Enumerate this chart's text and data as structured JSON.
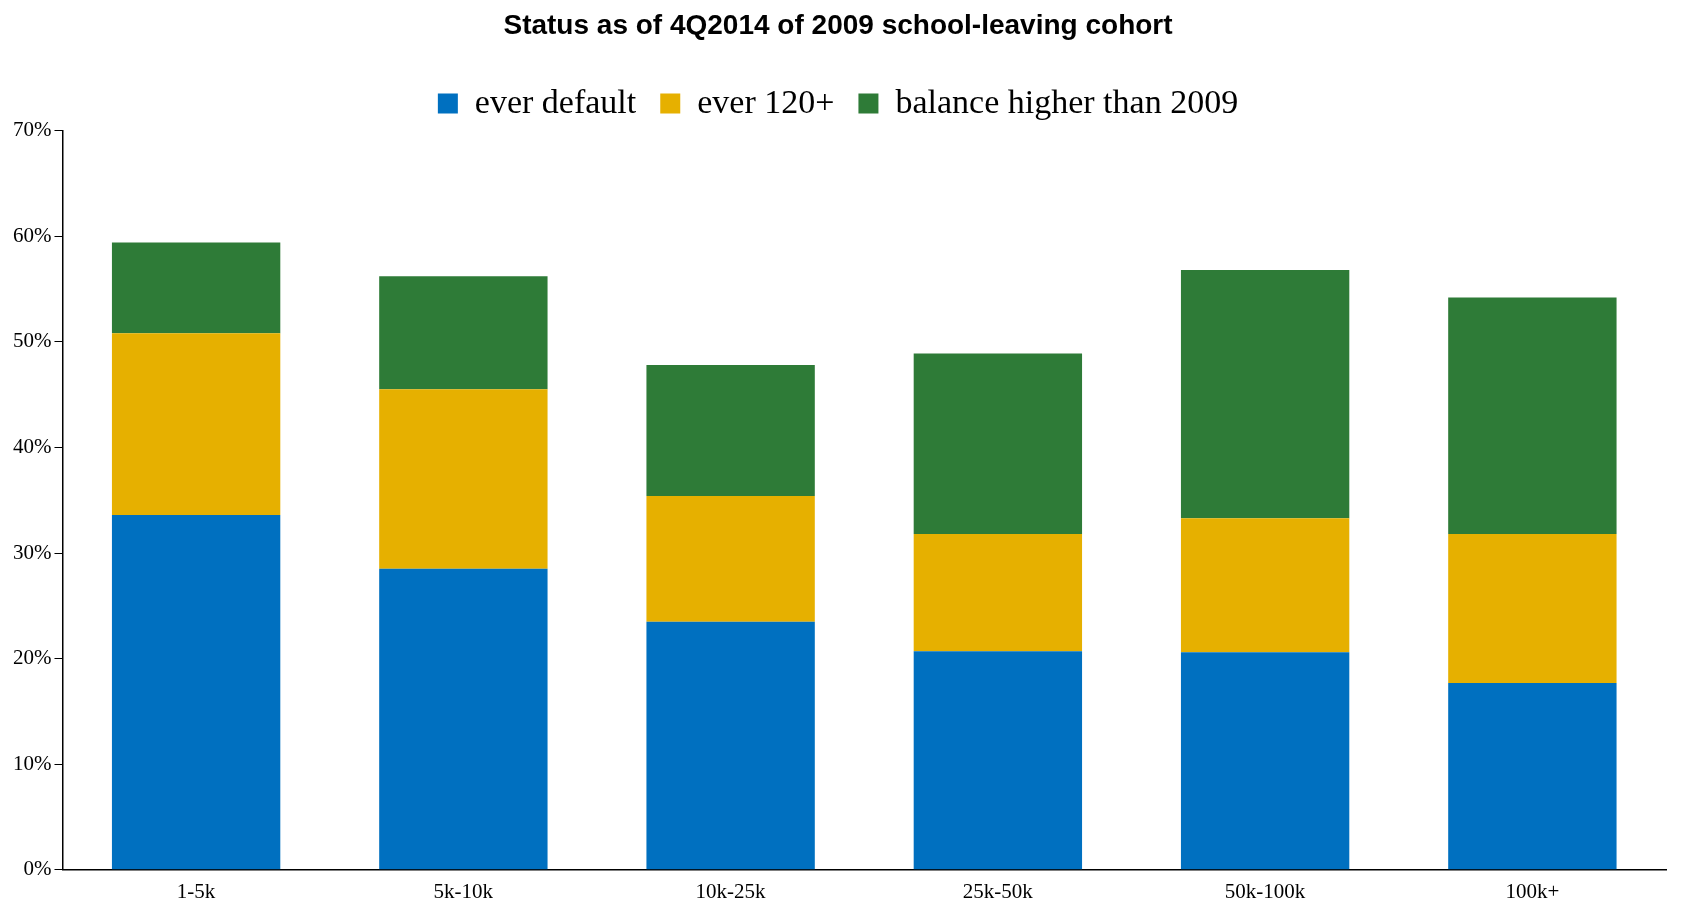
{
  "chart_data": {
    "type": "bar",
    "title": "Status as of 4Q2014 of 2009 school-leaving cohort",
    "stacked": true,
    "categories": [
      "1-5k",
      "5k-10k",
      "10k-25k",
      "25k-50k",
      "50k-100k",
      "100k+"
    ],
    "series": [
      {
        "name": "ever default",
        "color": "#0070c0",
        "values": [
          33.6,
          28.5,
          23.5,
          20.7,
          20.6,
          17.7
        ]
      },
      {
        "name": "ever 120+",
        "color": "#e6b000",
        "values": [
          17.2,
          17.0,
          11.9,
          11.1,
          12.7,
          14.1
        ]
      },
      {
        "name": "balance higher than 2009",
        "color": "#2e7b37",
        "values": [
          8.6,
          10.7,
          12.4,
          17.1,
          23.5,
          22.4
        ]
      }
    ],
    "ylim": [
      0,
      70
    ],
    "yticks": [
      {
        "value": 0,
        "label": "0%"
      },
      {
        "value": 10,
        "label": "10%"
      },
      {
        "value": 20,
        "label": "20%"
      },
      {
        "value": 30,
        "label": "30%"
      },
      {
        "value": 40,
        "label": "40%"
      },
      {
        "value": 50,
        "label": "50%"
      },
      {
        "value": 60,
        "label": "60%"
      },
      {
        "value": 70,
        "label": "70%"
      }
    ],
    "grid": false,
    "legend": "top"
  }
}
